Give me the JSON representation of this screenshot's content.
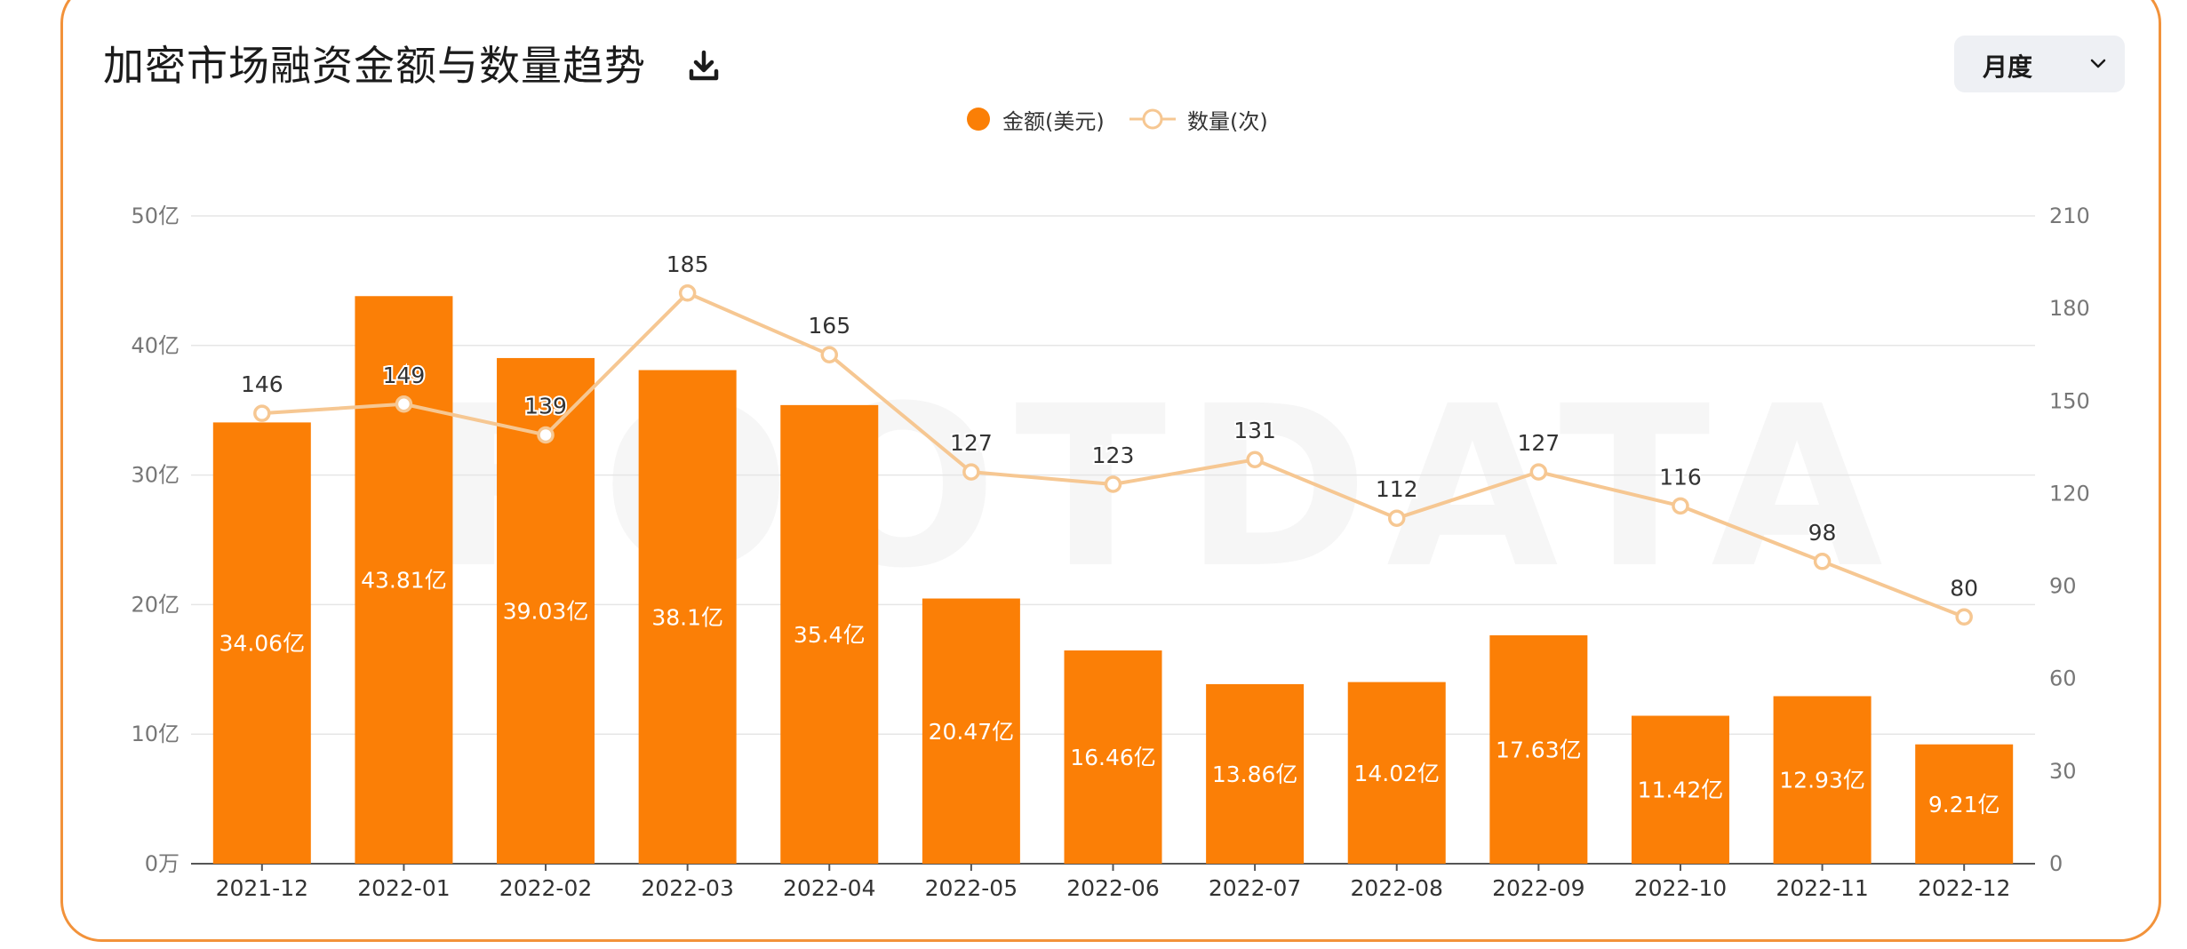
{
  "header": {
    "title": "加密市场融资金额与数量趋势",
    "download_icon": "download-icon",
    "period_select": {
      "selected": "月度",
      "icon": "chevron-down-icon"
    }
  },
  "legend": [
    {
      "label": "金额(美元)",
      "marker": "filled-circle",
      "color": "#fb7f06"
    },
    {
      "label": "数量(次)",
      "marker": "hollow-circle-line",
      "color": "#f6c792"
    }
  ],
  "watermark": "FOOTDATA",
  "chart_data": {
    "type": "bar",
    "categories": [
      "2021-12",
      "2022-01",
      "2022-02",
      "2022-03",
      "2022-04",
      "2022-05",
      "2022-06",
      "2022-07",
      "2022-08",
      "2022-09",
      "2022-10",
      "2022-11",
      "2022-12"
    ],
    "series": [
      {
        "name": "金额(美元)",
        "type": "bar",
        "axis": "left",
        "values": [
          34.06,
          43.81,
          39.03,
          38.1,
          35.4,
          20.47,
          16.46,
          13.86,
          14.02,
          17.63,
          11.42,
          12.93,
          9.21
        ],
        "labels": [
          "34.06亿",
          "43.81亿",
          "39.03亿",
          "38.1亿",
          "35.4亿",
          "20.47亿",
          "16.46亿",
          "13.86亿",
          "14.02亿",
          "17.63亿",
          "11.42亿",
          "12.93亿",
          "9.21亿"
        ],
        "color": "#fb7f06"
      },
      {
        "name": "数量(次)",
        "type": "line",
        "axis": "right",
        "values": [
          146,
          149,
          139,
          185,
          165,
          127,
          123,
          131,
          112,
          127,
          116,
          98,
          80
        ],
        "color": "#f6c792"
      }
    ],
    "y_left": {
      "ylim": [
        0,
        50
      ],
      "ticks": [
        "0万",
        "10亿",
        "20亿",
        "30亿",
        "40亿",
        "50亿"
      ]
    },
    "y_right": {
      "ylim": [
        0,
        210
      ],
      "ticks": [
        "0",
        "30",
        "60",
        "90",
        "120",
        "150",
        "180",
        "210"
      ]
    },
    "grid": true,
    "legend_position": "top-center"
  }
}
